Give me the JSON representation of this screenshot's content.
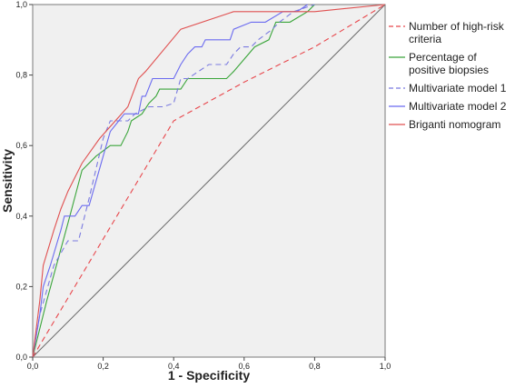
{
  "chart_data": {
    "type": "line",
    "title": "",
    "xlabel": "1 - Specificity",
    "ylabel": "Sensitivity",
    "xlim": [
      0,
      1
    ],
    "ylim": [
      0,
      1
    ],
    "x_ticks": [
      "0,0",
      "0,2",
      "0,4",
      "0,6",
      "0,8",
      "1,0"
    ],
    "y_ticks": [
      "0,0",
      "0,2",
      "0,4",
      "0,6",
      "0,8",
      "1,0"
    ],
    "grid": false,
    "legend_position": "right",
    "reference_line": true,
    "series": [
      {
        "name": "Number of high-risk criteria",
        "color": "#e8474c",
        "dash": true,
        "points": [
          [
            0,
            0
          ],
          [
            0.4,
            0.67
          ],
          [
            0.6,
            0.78
          ],
          [
            0.8,
            0.88
          ],
          [
            1.0,
            1.0
          ]
        ]
      },
      {
        "name": "Percentage of positive biopsies",
        "color": "#3aa53a",
        "dash": false,
        "points": [
          [
            0,
            0
          ],
          [
            0.04,
            0.16
          ],
          [
            0.1,
            0.38
          ],
          [
            0.14,
            0.53
          ],
          [
            0.18,
            0.57
          ],
          [
            0.22,
            0.6
          ],
          [
            0.25,
            0.6
          ],
          [
            0.27,
            0.64
          ],
          [
            0.28,
            0.67
          ],
          [
            0.31,
            0.69
          ],
          [
            0.33,
            0.72
          ],
          [
            0.35,
            0.74
          ],
          [
            0.36,
            0.76
          ],
          [
            0.42,
            0.76
          ],
          [
            0.44,
            0.79
          ],
          [
            0.55,
            0.79
          ],
          [
            0.57,
            0.81
          ],
          [
            0.63,
            0.88
          ],
          [
            0.67,
            0.9
          ],
          [
            0.69,
            0.95
          ],
          [
            0.73,
            0.95
          ],
          [
            0.78,
            0.98
          ],
          [
            0.8,
            1.0
          ]
        ]
      },
      {
        "name": "Multivariate model 1",
        "color": "#7a7ae0",
        "dash": true,
        "points": [
          [
            0,
            0
          ],
          [
            0.02,
            0.12
          ],
          [
            0.06,
            0.26
          ],
          [
            0.1,
            0.33
          ],
          [
            0.13,
            0.33
          ],
          [
            0.16,
            0.45
          ],
          [
            0.2,
            0.62
          ],
          [
            0.22,
            0.67
          ],
          [
            0.27,
            0.67
          ],
          [
            0.29,
            0.69
          ],
          [
            0.33,
            0.71
          ],
          [
            0.37,
            0.71
          ],
          [
            0.4,
            0.72
          ],
          [
            0.42,
            0.79
          ],
          [
            0.44,
            0.79
          ],
          [
            0.5,
            0.83
          ],
          [
            0.55,
            0.83
          ],
          [
            0.57,
            0.86
          ],
          [
            0.59,
            0.88
          ],
          [
            0.62,
            0.88
          ],
          [
            0.64,
            0.9
          ],
          [
            0.68,
            0.93
          ],
          [
            0.7,
            0.95
          ],
          [
            0.74,
            0.98
          ],
          [
            0.8,
            1.0
          ]
        ]
      },
      {
        "name": "Multivariate model 2",
        "color": "#6b6bf0",
        "dash": false,
        "points": [
          [
            0,
            0
          ],
          [
            0.02,
            0.12
          ],
          [
            0.03,
            0.2
          ],
          [
            0.05,
            0.26
          ],
          [
            0.08,
            0.36
          ],
          [
            0.09,
            0.4
          ],
          [
            0.12,
            0.4
          ],
          [
            0.14,
            0.43
          ],
          [
            0.16,
            0.43
          ],
          [
            0.2,
            0.57
          ],
          [
            0.22,
            0.64
          ],
          [
            0.26,
            0.69
          ],
          [
            0.3,
            0.69
          ],
          [
            0.31,
            0.74
          ],
          [
            0.32,
            0.74
          ],
          [
            0.34,
            0.79
          ],
          [
            0.38,
            0.79
          ],
          [
            0.4,
            0.79
          ],
          [
            0.42,
            0.83
          ],
          [
            0.44,
            0.86
          ],
          [
            0.46,
            0.88
          ],
          [
            0.48,
            0.88
          ],
          [
            0.49,
            0.9
          ],
          [
            0.56,
            0.9
          ],
          [
            0.57,
            0.93
          ],
          [
            0.62,
            0.95
          ],
          [
            0.66,
            0.95
          ],
          [
            0.71,
            0.98
          ],
          [
            0.75,
            0.98
          ],
          [
            0.78,
            1.0
          ]
        ]
      },
      {
        "name": "Briganti nomogram",
        "color": "#e05050",
        "dash": false,
        "points": [
          [
            0,
            0
          ],
          [
            0.02,
            0.16
          ],
          [
            0.03,
            0.26
          ],
          [
            0.06,
            0.36
          ],
          [
            0.08,
            0.42
          ],
          [
            0.1,
            0.47
          ],
          [
            0.14,
            0.55
          ],
          [
            0.19,
            0.62
          ],
          [
            0.27,
            0.71
          ],
          [
            0.3,
            0.79
          ],
          [
            0.32,
            0.81
          ],
          [
            0.42,
            0.93
          ],
          [
            0.57,
            0.98
          ],
          [
            0.8,
            0.98
          ],
          [
            1.0,
            1.0
          ]
        ]
      }
    ]
  }
}
